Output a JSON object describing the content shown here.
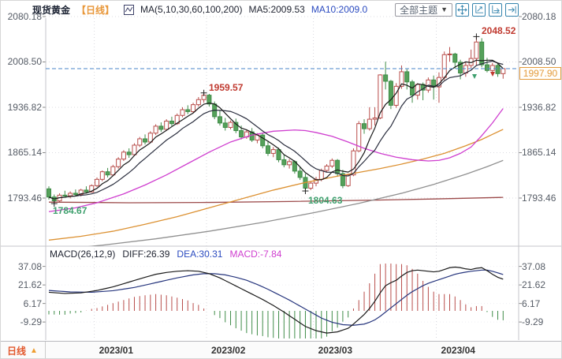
{
  "header": {
    "symbol": "现货黄金",
    "period": "【日线】",
    "ma_settings": "MA(5,10,30,60,100,200)",
    "ma5": "MA5:2009.53",
    "ma10": "MA10:2009.0",
    "theme_button": "全部主题",
    "theme_arrow": "▼"
  },
  "axis": {
    "price_labels": [
      "2080.18",
      "2008.50",
      "1936.82",
      "1865.14",
      "1793.46"
    ],
    "macd_labels": [
      "37.08",
      "21.62",
      "6.17",
      "-9.29"
    ]
  },
  "macd_header": {
    "formula": "MACD(26,12,9)",
    "diff": "DIFF:26.39",
    "dea": "DEA:30.31",
    "macd": "MACD:-7.84"
  },
  "bottom": {
    "period": "日线",
    "arrow": "▲",
    "x_labels": [
      "2023/01",
      "2023/02",
      "2023/03",
      "2023/04"
    ]
  },
  "annotations": {
    "april_high": "2048.52",
    "feb_high": "1959.57",
    "dec_low": "1784.67",
    "feb_low": "1804.63",
    "last_price": "1997.90"
  },
  "colors": {
    "up": "#b84d4a",
    "down_fill": "#55a15a",
    "down_stroke": "#3f8c48",
    "ma5": "#1a1a1a",
    "ma10": "#2a2e3e",
    "ma30": "#cf3ecf",
    "ma60": "#dc9132",
    "ma100": "#909090",
    "ma200": "#9c4a4a",
    "diff": "#1a1a1a",
    "dea": "#26357d",
    "hist_pos": "#b84d4a",
    "hist_neg": "#3f8c48",
    "price_line": "#4a86c8",
    "accent_orange": "#e8973a",
    "ann_red": "#c03a30",
    "ann_green": "#3fa06e",
    "icon_blue": "#3584ad"
  },
  "chart_data": {
    "type": "candlestick",
    "title": "现货黄金 日线",
    "legend": [
      "MA5",
      "MA10",
      "MA30",
      "MA60",
      "MA100",
      "MA200"
    ],
    "ma5_value": 2009.53,
    "ma10_value": 2009.0,
    "x_axis_months": [
      "2023/01",
      "2023/02",
      "2023/03",
      "2023/04"
    ],
    "month_start_indices": [
      9,
      30,
      50,
      73
    ],
    "price_ticks": [
      2080.18,
      2008.5,
      1936.82,
      1865.14,
      1793.46
    ],
    "macd_ticks": [
      37.08,
      21.62,
      6.17,
      -9.29
    ],
    "ylim": [
      1770,
      2080.18
    ],
    "last_price": 1997.9,
    "candles": [
      [
        1808,
        1812,
        1791,
        1795
      ],
      [
        1795,
        1799,
        1784.67,
        1789
      ],
      [
        1789,
        1801,
        1786,
        1798
      ],
      [
        1798,
        1805,
        1794,
        1797
      ],
      [
        1797,
        1804,
        1793,
        1801
      ],
      [
        1801,
        1807,
        1797,
        1799
      ],
      [
        1799,
        1808,
        1796,
        1806
      ],
      [
        1806,
        1812,
        1801,
        1803
      ],
      [
        1803,
        1815,
        1802,
        1813
      ],
      [
        1813,
        1826,
        1811,
        1823
      ],
      [
        1823,
        1837,
        1820,
        1835
      ],
      [
        1835,
        1841,
        1826,
        1830
      ],
      [
        1830,
        1846,
        1828,
        1843
      ],
      [
        1843,
        1858,
        1840,
        1855
      ],
      [
        1855,
        1869,
        1852,
        1866
      ],
      [
        1866,
        1872,
        1857,
        1862
      ],
      [
        1862,
        1880,
        1860,
        1877
      ],
      [
        1877,
        1890,
        1874,
        1887
      ],
      [
        1887,
        1894,
        1878,
        1882
      ],
      [
        1882,
        1899,
        1880,
        1896
      ],
      [
        1896,
        1910,
        1893,
        1907
      ],
      [
        1907,
        1913,
        1898,
        1902
      ],
      [
        1902,
        1918,
        1900,
        1915
      ],
      [
        1915,
        1922,
        1907,
        1911
      ],
      [
        1911,
        1927,
        1909,
        1924
      ],
      [
        1924,
        1937,
        1921,
        1933
      ],
      [
        1933,
        1940,
        1926,
        1930
      ],
      [
        1930,
        1944,
        1928,
        1941
      ],
      [
        1941,
        1953,
        1938,
        1949
      ],
      [
        1949,
        1959.57,
        1944,
        1956
      ],
      [
        1956,
        1958,
        1938,
        1942
      ],
      [
        1942,
        1946,
        1918,
        1922
      ],
      [
        1922,
        1932,
        1908,
        1912
      ],
      [
        1912,
        1920,
        1900,
        1905
      ],
      [
        1905,
        1916,
        1902,
        1913
      ],
      [
        1913,
        1919,
        1896,
        1900
      ],
      [
        1900,
        1908,
        1886,
        1890
      ],
      [
        1890,
        1902,
        1887,
        1898
      ],
      [
        1898,
        1904,
        1882,
        1885
      ],
      [
        1885,
        1896,
        1880,
        1893
      ],
      [
        1893,
        1897,
        1872,
        1876
      ],
      [
        1876,
        1884,
        1860,
        1864
      ],
      [
        1864,
        1874,
        1858,
        1870
      ],
      [
        1870,
        1873,
        1850,
        1854
      ],
      [
        1854,
        1862,
        1842,
        1846
      ],
      [
        1846,
        1855,
        1840,
        1851
      ],
      [
        1851,
        1853,
        1832,
        1836
      ],
      [
        1836,
        1843,
        1822,
        1826
      ],
      [
        1826,
        1832,
        1804.63,
        1809
      ],
      [
        1809,
        1820,
        1806,
        1817
      ],
      [
        1817,
        1827,
        1812,
        1823
      ],
      [
        1823,
        1840,
        1820,
        1837
      ],
      [
        1837,
        1847,
        1834,
        1844
      ],
      [
        1844,
        1856,
        1841,
        1853
      ],
      [
        1853,
        1855,
        1827,
        1832
      ],
      [
        1832,
        1838,
        1809,
        1813
      ],
      [
        1813,
        1832,
        1811,
        1830
      ],
      [
        1830,
        1872,
        1828,
        1868
      ],
      [
        1868,
        1915,
        1866,
        1911
      ],
      [
        1911,
        1918,
        1895,
        1903
      ],
      [
        1903,
        1937,
        1900,
        1918
      ],
      [
        1918,
        1937,
        1908,
        1920
      ],
      [
        1920,
        1989,
        1918,
        1988
      ],
      [
        1988,
        2009,
        1965,
        1978
      ],
      [
        1978,
        1980,
        1934,
        1940
      ],
      [
        1940,
        1975,
        1936,
        1970
      ],
      [
        1970,
        2003,
        1966,
        1993
      ],
      [
        1993,
        1997,
        1965,
        1977
      ],
      [
        1977,
        1980,
        1944,
        1956
      ],
      [
        1956,
        1975,
        1949,
        1973
      ],
      [
        1973,
        1976,
        1948,
        1964
      ],
      [
        1964,
        1984,
        1960,
        1980
      ],
      [
        1980,
        1987,
        1949,
        1969
      ],
      [
        1969,
        1992,
        1944,
        1984
      ],
      [
        1984,
        2025,
        1980,
        2020
      ],
      [
        2020,
        2032,
        2009,
        2021
      ],
      [
        2021,
        2023,
        1998,
        2008
      ],
      [
        2008,
        2012,
        1981,
        1991
      ],
      [
        1991,
        2009,
        1985,
        2003
      ],
      [
        2003,
        2028,
        1999,
        2014
      ],
      [
        2014,
        2048.52,
        2003,
        2040
      ],
      [
        2040,
        2046,
        2000,
        2004
      ],
      [
        2004,
        2015,
        1992,
        1995
      ],
      [
        1995,
        2007,
        1989,
        2003
      ],
      [
        2003,
        2006,
        1985,
        1990
      ],
      [
        1990,
        1999,
        1982,
        1997.9
      ]
    ],
    "extreme_markers": [
      [
        1,
        1784.67
      ],
      [
        29,
        1959.57
      ],
      [
        48,
        1804.63
      ],
      [
        80,
        2048.52
      ]
    ],
    "ma_overlays": [
      {
        "name": "MA200",
        "color_key": "ma200",
        "points": [
          [
            0,
            1787
          ],
          [
            15,
            1786
          ],
          [
            30,
            1786.5
          ],
          [
            45,
            1788
          ],
          [
            60,
            1790
          ],
          [
            72,
            1792
          ],
          [
            85,
            1794.5
          ]
        ]
      },
      {
        "name": "MA100",
        "color_key": "ma100",
        "points": [
          [
            0,
            1710
          ],
          [
            10,
            1719
          ],
          [
            20,
            1729
          ],
          [
            30,
            1741
          ],
          [
            40,
            1755
          ],
          [
            50,
            1771
          ],
          [
            58,
            1785
          ],
          [
            66,
            1801
          ],
          [
            72,
            1815
          ],
          [
            78,
            1831
          ],
          [
            82,
            1843
          ],
          [
            85,
            1853
          ]
        ]
      },
      {
        "name": "MA60",
        "color_key": "ma60",
        "points": [
          [
            0,
            1727
          ],
          [
            6,
            1733
          ],
          [
            12,
            1741
          ],
          [
            18,
            1752
          ],
          [
            24,
            1764
          ],
          [
            30,
            1778
          ],
          [
            36,
            1792
          ],
          [
            42,
            1806
          ],
          [
            48,
            1818
          ],
          [
            54,
            1828
          ],
          [
            58,
            1834
          ],
          [
            62,
            1840
          ],
          [
            66,
            1847
          ],
          [
            70,
            1855
          ],
          [
            74,
            1864
          ],
          [
            78,
            1876
          ],
          [
            81,
            1886
          ],
          [
            83,
            1894
          ],
          [
            85,
            1902
          ]
        ]
      },
      {
        "name": "MA30",
        "color_key": "ma30",
        "points": [
          [
            0,
            1772
          ],
          [
            5,
            1778
          ],
          [
            9,
            1786
          ],
          [
            14,
            1800
          ],
          [
            18,
            1814
          ],
          [
            22,
            1830
          ],
          [
            26,
            1848
          ],
          [
            30,
            1866
          ],
          [
            34,
            1882
          ],
          [
            38,
            1893
          ],
          [
            42,
            1899
          ],
          [
            46,
            1901
          ],
          [
            48,
            1900
          ],
          [
            50,
            1897
          ],
          [
            53,
            1891
          ],
          [
            56,
            1882
          ],
          [
            59,
            1872
          ],
          [
            62,
            1864
          ],
          [
            65,
            1858
          ],
          [
            68,
            1854
          ],
          [
            71,
            1852
          ],
          [
            73,
            1853
          ],
          [
            75,
            1857
          ],
          [
            77,
            1864
          ],
          [
            79,
            1874
          ],
          [
            81,
            1892
          ],
          [
            83,
            1912
          ],
          [
            85,
            1935
          ]
        ]
      }
    ],
    "macd": {
      "formula": [
        26,
        12,
        9
      ],
      "diff": 26.39,
      "dea": 30.31,
      "macd": -7.84,
      "diff_points": [
        [
          0,
          15.5
        ],
        [
          3,
          14.5
        ],
        [
          6,
          15
        ],
        [
          9,
          17
        ],
        [
          12,
          20
        ],
        [
          15,
          24
        ],
        [
          18,
          28
        ],
        [
          20,
          30.5
        ],
        [
          22,
          32
        ],
        [
          24,
          33
        ],
        [
          26,
          33.5
        ],
        [
          28,
          33
        ],
        [
          30,
          31
        ],
        [
          32,
          27.5
        ],
        [
          34,
          23
        ],
        [
          36,
          18.5
        ],
        [
          38,
          14
        ],
        [
          40,
          9.5
        ],
        [
          42,
          4.5
        ],
        [
          44,
          -1
        ],
        [
          46,
          -7
        ],
        [
          48,
          -13
        ],
        [
          50,
          -16.5
        ],
        [
          52,
          -18.5
        ],
        [
          54,
          -17.5
        ],
        [
          56,
          -14.5
        ],
        [
          57,
          -11
        ],
        [
          58,
          -7
        ],
        [
          59,
          -3
        ],
        [
          60,
          2
        ],
        [
          61,
          8
        ],
        [
          62,
          15
        ],
        [
          63,
          21
        ],
        [
          64,
          23.5
        ],
        [
          65,
          25.5
        ],
        [
          66,
          29
        ],
        [
          67,
          32
        ],
        [
          68,
          33.5
        ],
        [
          69,
          34
        ],
        [
          70,
          33.5
        ],
        [
          71,
          33
        ],
        [
          72,
          32.5
        ],
        [
          73,
          33
        ],
        [
          74,
          34.5
        ],
        [
          75,
          36
        ],
        [
          76,
          36.5
        ],
        [
          77,
          36
        ],
        [
          78,
          35
        ],
        [
          79,
          34.5
        ],
        [
          80,
          35.5
        ],
        [
          81,
          36
        ],
        [
          82,
          33.5
        ],
        [
          83,
          30.5
        ],
        [
          84,
          28
        ],
        [
          85,
          26.39
        ]
      ],
      "dea_points": [
        [
          0,
          17
        ],
        [
          4,
          15.8
        ],
        [
          8,
          15.5
        ],
        [
          12,
          16.8
        ],
        [
          16,
          19.5
        ],
        [
          20,
          23.5
        ],
        [
          24,
          27.5
        ],
        [
          27,
          30
        ],
        [
          29,
          31
        ],
        [
          31,
          31
        ],
        [
          33,
          30
        ],
        [
          35,
          28
        ],
        [
          37,
          25.5
        ],
        [
          39,
          22
        ],
        [
          41,
          18
        ],
        [
          43,
          13.5
        ],
        [
          45,
          9
        ],
        [
          47,
          4
        ],
        [
          49,
          -1
        ],
        [
          51,
          -6
        ],
        [
          53,
          -9.5
        ],
        [
          55,
          -11.5
        ],
        [
          57,
          -12
        ],
        [
          59,
          -11
        ],
        [
          60,
          -9.5
        ],
        [
          61,
          -7.5
        ],
        [
          62,
          -4.5
        ],
        [
          63,
          -1
        ],
        [
          64,
          2.5
        ],
        [
          65,
          6
        ],
        [
          66,
          9.5
        ],
        [
          67,
          13
        ],
        [
          68,
          16
        ],
        [
          69,
          18.5
        ],
        [
          70,
          21
        ],
        [
          71,
          23
        ],
        [
          72,
          24.5
        ],
        [
          73,
          26
        ],
        [
          74,
          27.5
        ],
        [
          75,
          29
        ],
        [
          76,
          30.5
        ],
        [
          77,
          31.5
        ],
        [
          78,
          32.3
        ],
        [
          79,
          33
        ],
        [
          80,
          33.5
        ],
        [
          81,
          34
        ],
        [
          82,
          34
        ],
        [
          83,
          33
        ],
        [
          84,
          31.7
        ],
        [
          85,
          30.31
        ]
      ]
    }
  }
}
